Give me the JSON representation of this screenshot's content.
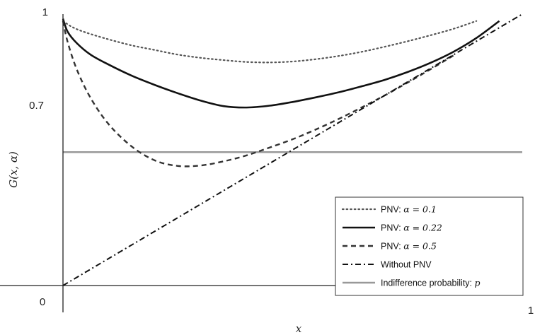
{
  "chart_data": {
    "type": "line",
    "title": "",
    "xlabel": "x",
    "ylabel": "G(x, α)",
    "xlim": [
      0,
      1
    ],
    "ylim": [
      0.41,
      1
    ],
    "x_ticks": [
      {
        "value": 0,
        "label": "0"
      },
      {
        "value": 1,
        "label": "1"
      }
    ],
    "y_ticks": [
      {
        "value": 1,
        "label": "1"
      },
      {
        "value": 0.7,
        "label": "0.7"
      }
    ],
    "grid": false,
    "legend_position": "bottom-right",
    "series": [
      {
        "name": "PNV: α = 0.1",
        "legend_prefix": "PNV: ",
        "legend_math": "α = 0.1",
        "style": "dotted",
        "color": "#555555",
        "x": [
          0.0,
          0.02,
          0.05,
          0.1,
          0.15,
          0.2,
          0.25,
          0.3,
          0.35,
          0.4,
          0.45,
          0.5,
          0.55,
          0.6,
          0.65,
          0.7,
          0.75,
          0.8,
          0.85,
          0.9
        ],
        "y": [
          0.985,
          0.972,
          0.96,
          0.945,
          0.932,
          0.922,
          0.912,
          0.905,
          0.9,
          0.896,
          0.895,
          0.897,
          0.902,
          0.909,
          0.918,
          0.929,
          0.941,
          0.954,
          0.968,
          0.985
        ]
      },
      {
        "name": "PNV: α = 0.22",
        "legend_prefix": "PNV: ",
        "legend_math": "α = 0.22",
        "style": "solid",
        "color": "#111111",
        "x": [
          0.0,
          0.01,
          0.03,
          0.06,
          0.1,
          0.15,
          0.2,
          0.25,
          0.3,
          0.35,
          0.4,
          0.45,
          0.5,
          0.55,
          0.6,
          0.65,
          0.7,
          0.75,
          0.8,
          0.85,
          0.9,
          0.95
        ],
        "y": [
          0.99,
          0.962,
          0.937,
          0.912,
          0.89,
          0.866,
          0.846,
          0.828,
          0.812,
          0.8,
          0.797,
          0.801,
          0.809,
          0.819,
          0.83,
          0.843,
          0.857,
          0.874,
          0.894,
          0.918,
          0.948,
          0.985
        ]
      },
      {
        "name": "PNV: α = 0.5",
        "legend_prefix": "PNV: ",
        "legend_math": "α = 0.5",
        "style": "dashed",
        "color": "#333333",
        "x": [
          0.0,
          0.01,
          0.03,
          0.06,
          0.1,
          0.15,
          0.2,
          0.25,
          0.3,
          0.35,
          0.4,
          0.45,
          0.5,
          0.55,
          0.6,
          0.65,
          0.7,
          0.75,
          0.8,
          0.85
        ],
        "y": [
          0.985,
          0.94,
          0.88,
          0.818,
          0.76,
          0.712,
          0.682,
          0.67,
          0.671,
          0.68,
          0.693,
          0.71,
          0.728,
          0.749,
          0.772,
          0.797,
          0.823,
          0.851,
          0.88,
          0.91
        ]
      },
      {
        "name": "Without PNV",
        "legend_prefix": "Without PNV",
        "legend_math": "",
        "style": "dashdot",
        "color": "#111111",
        "x": [
          0.0,
          1.0
        ],
        "y": [
          0.41,
          1.0
        ]
      },
      {
        "name": "Indifference probability: p",
        "legend_prefix": "Indifference probability: ",
        "legend_math": "p",
        "style": "solid-gray",
        "color": "#999999",
        "x": [
          0.0,
          1.0
        ],
        "y": [
          0.7,
          0.7
        ]
      }
    ]
  }
}
